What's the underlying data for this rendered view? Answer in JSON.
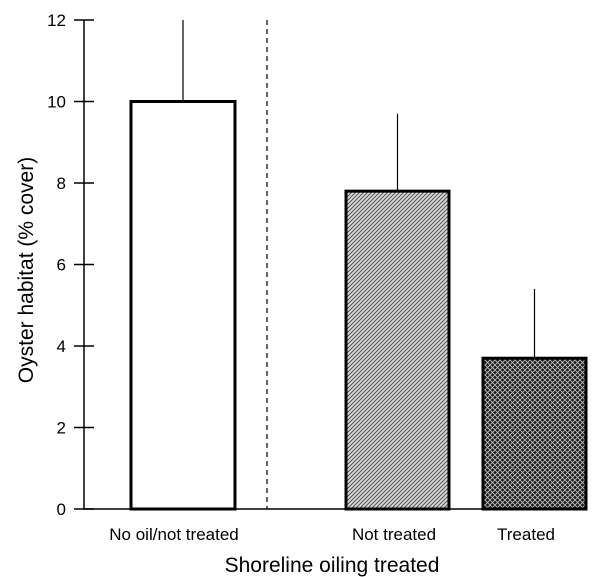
{
  "chart_data": {
    "type": "bar",
    "title": "",
    "xlabel": "Shoreline oiling treated",
    "ylabel": "Oyster habitat (% cover)",
    "ylim": [
      0,
      12
    ],
    "yticks": [
      "0",
      "2",
      "4",
      "6",
      "8",
      "10",
      "12"
    ],
    "grid": false,
    "categories": [
      "No oil/not treated",
      "Not treated",
      "Treated"
    ],
    "values": [
      10,
      7.8,
      3.7
    ],
    "error_upper": [
      12,
      9.7,
      5.4
    ],
    "bar_fill": [
      "white",
      "diagonal-hatch",
      "crosshatch"
    ],
    "separator": "dashed vertical line after first bar"
  }
}
